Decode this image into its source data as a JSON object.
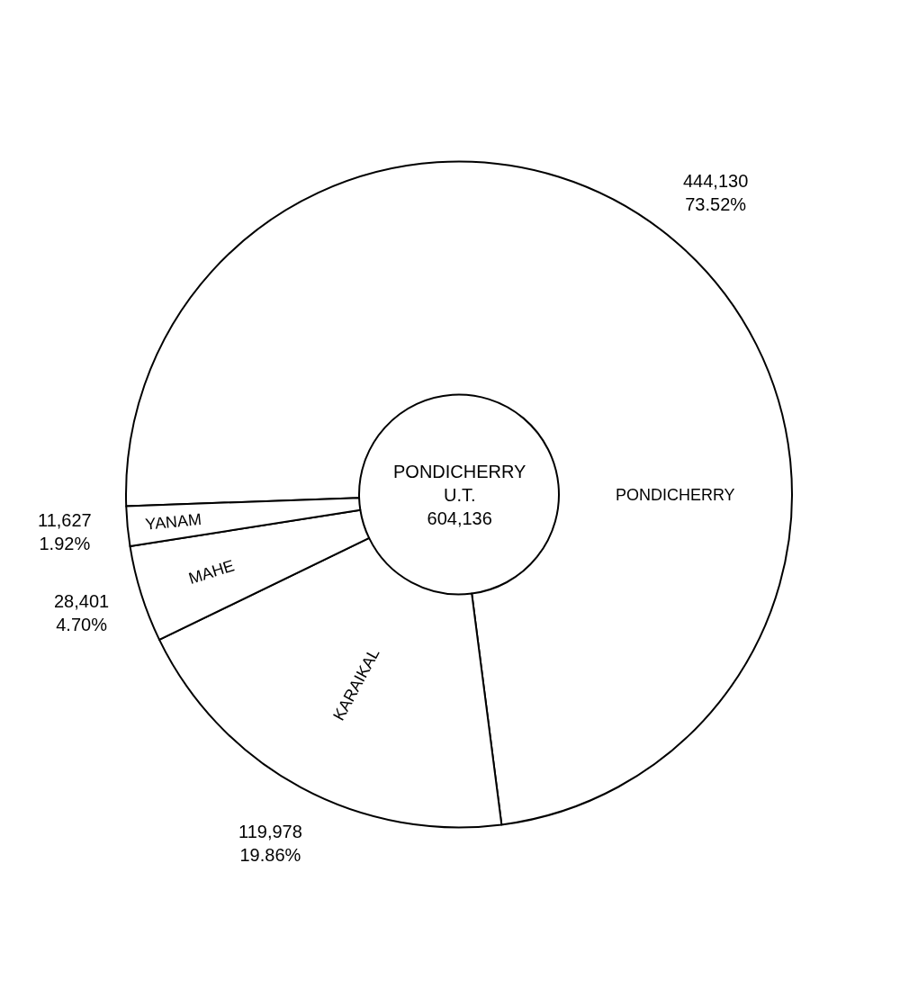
{
  "chart_data": {
    "type": "donut",
    "categories": [
      "PONDICHERRY",
      "KARAIKAL",
      "MAHE",
      "YANAM"
    ],
    "values": [
      444130,
      119978,
      28401,
      11627
    ],
    "colors": [
      "#ffffff",
      "#ffffff",
      "#ffffff",
      "#ffffff"
    ],
    "value_labels": [
      "444,130\n73.52%",
      "119,978\n19.86%",
      "28,401\n4.70%",
      "11,627\n1.92%"
    ],
    "annotations": [
      "PONDICHERRY\nU.T.\n604,136"
    ],
    "legend": false
  }
}
